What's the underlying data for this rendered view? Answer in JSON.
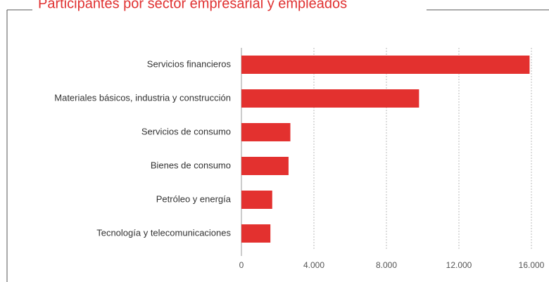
{
  "chart_data": {
    "type": "bar",
    "orientation": "horizontal",
    "title": "Participantes por sector empresarial y empleados",
    "categories": [
      "Servicios financieros",
      "Materiales básicos, industria y construcción",
      "Servicios de consumo",
      "Bienes de consumo",
      "Petróleo y energía",
      "Tecnología y telecomunicaciones"
    ],
    "values": [
      15900,
      9800,
      2700,
      2600,
      1700,
      1600
    ],
    "color": "#e3312f",
    "xlim": [
      0,
      16000
    ],
    "xticks": [
      0,
      {
        "value": 4000,
        "label": "4.000"
      },
      {
        "value": 8000,
        "label": "8.000"
      },
      {
        "value": 12000,
        "label": "12.000"
      },
      {
        "value": 16000,
        "label": "16.000"
      }
    ],
    "grid": true
  }
}
